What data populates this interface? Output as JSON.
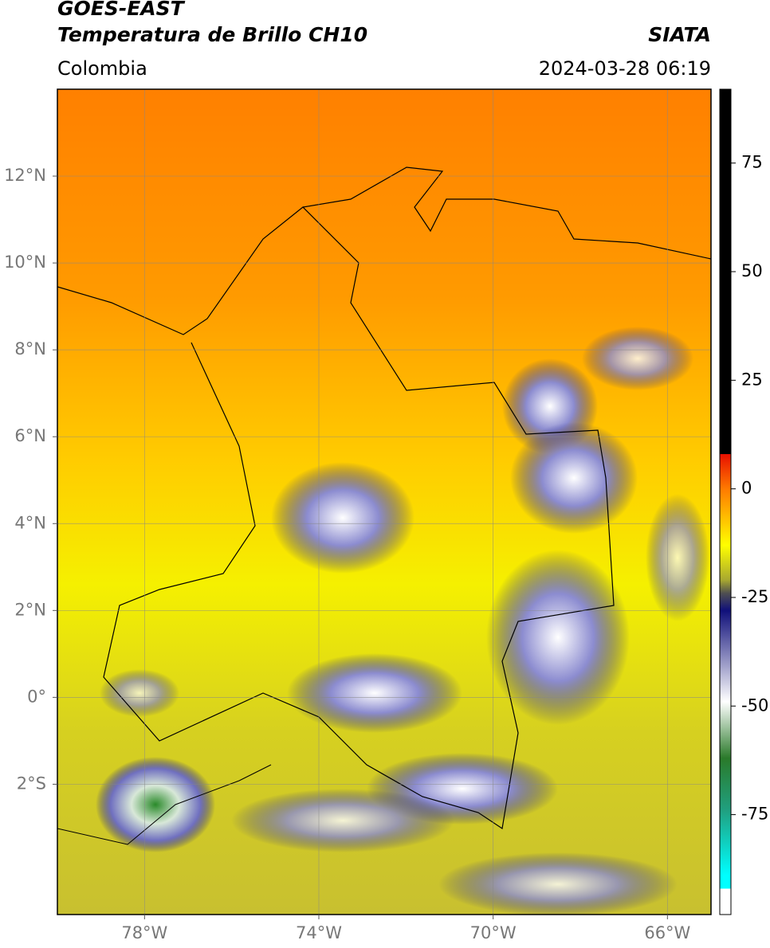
{
  "header": {
    "title": "GOES-EAST",
    "subtitle": "Temperatura de Brillo CH10",
    "source": "SIATA",
    "region": "Colombia",
    "datetime": "2024-03-28 06:19"
  },
  "map": {
    "xlim": [
      -80,
      -65
    ],
    "ylim": [
      -5,
      14
    ],
    "xticks": [
      {
        "value": -78,
        "label": "78°W"
      },
      {
        "value": -74,
        "label": "74°W"
      },
      {
        "value": -70,
        "label": "70°W"
      },
      {
        "value": -66,
        "label": "66°W"
      }
    ],
    "yticks": [
      {
        "value": 12,
        "label": "12°N"
      },
      {
        "value": 10,
        "label": "10°N"
      },
      {
        "value": 8,
        "label": "8°N"
      },
      {
        "value": 6,
        "label": "6°N"
      },
      {
        "value": 4,
        "label": "4°N"
      },
      {
        "value": 2,
        "label": "2°N"
      },
      {
        "value": 0,
        "label": "0°"
      },
      {
        "value": -2,
        "label": "2°S"
      }
    ]
  },
  "colorbar": {
    "lim": [
      -98,
      92
    ],
    "ticks": [
      75,
      50,
      25,
      0,
      -25,
      -50,
      -75
    ],
    "stops": [
      {
        "value": 92,
        "color": "#000000"
      },
      {
        "value": 8,
        "color": "#000000"
      },
      {
        "value": 8,
        "color": "#e81000"
      },
      {
        "value": 0,
        "color": "#ff7a00"
      },
      {
        "value": -13,
        "color": "#ffff00"
      },
      {
        "value": -21,
        "color": "#a8a830"
      },
      {
        "value": -24,
        "color": "#505050"
      },
      {
        "value": -28,
        "color": "#10107a"
      },
      {
        "value": -49,
        "color": "#ffffff"
      },
      {
        "value": -62,
        "color": "#2a7a2a"
      },
      {
        "value": -74,
        "color": "#20a080"
      },
      {
        "value": -89,
        "color": "#00ffff"
      },
      {
        "value": -92,
        "color": "#00ffff"
      },
      {
        "value": -92,
        "color": "#ffffff"
      },
      {
        "value": -98,
        "color": "#ffffff"
      }
    ]
  }
}
